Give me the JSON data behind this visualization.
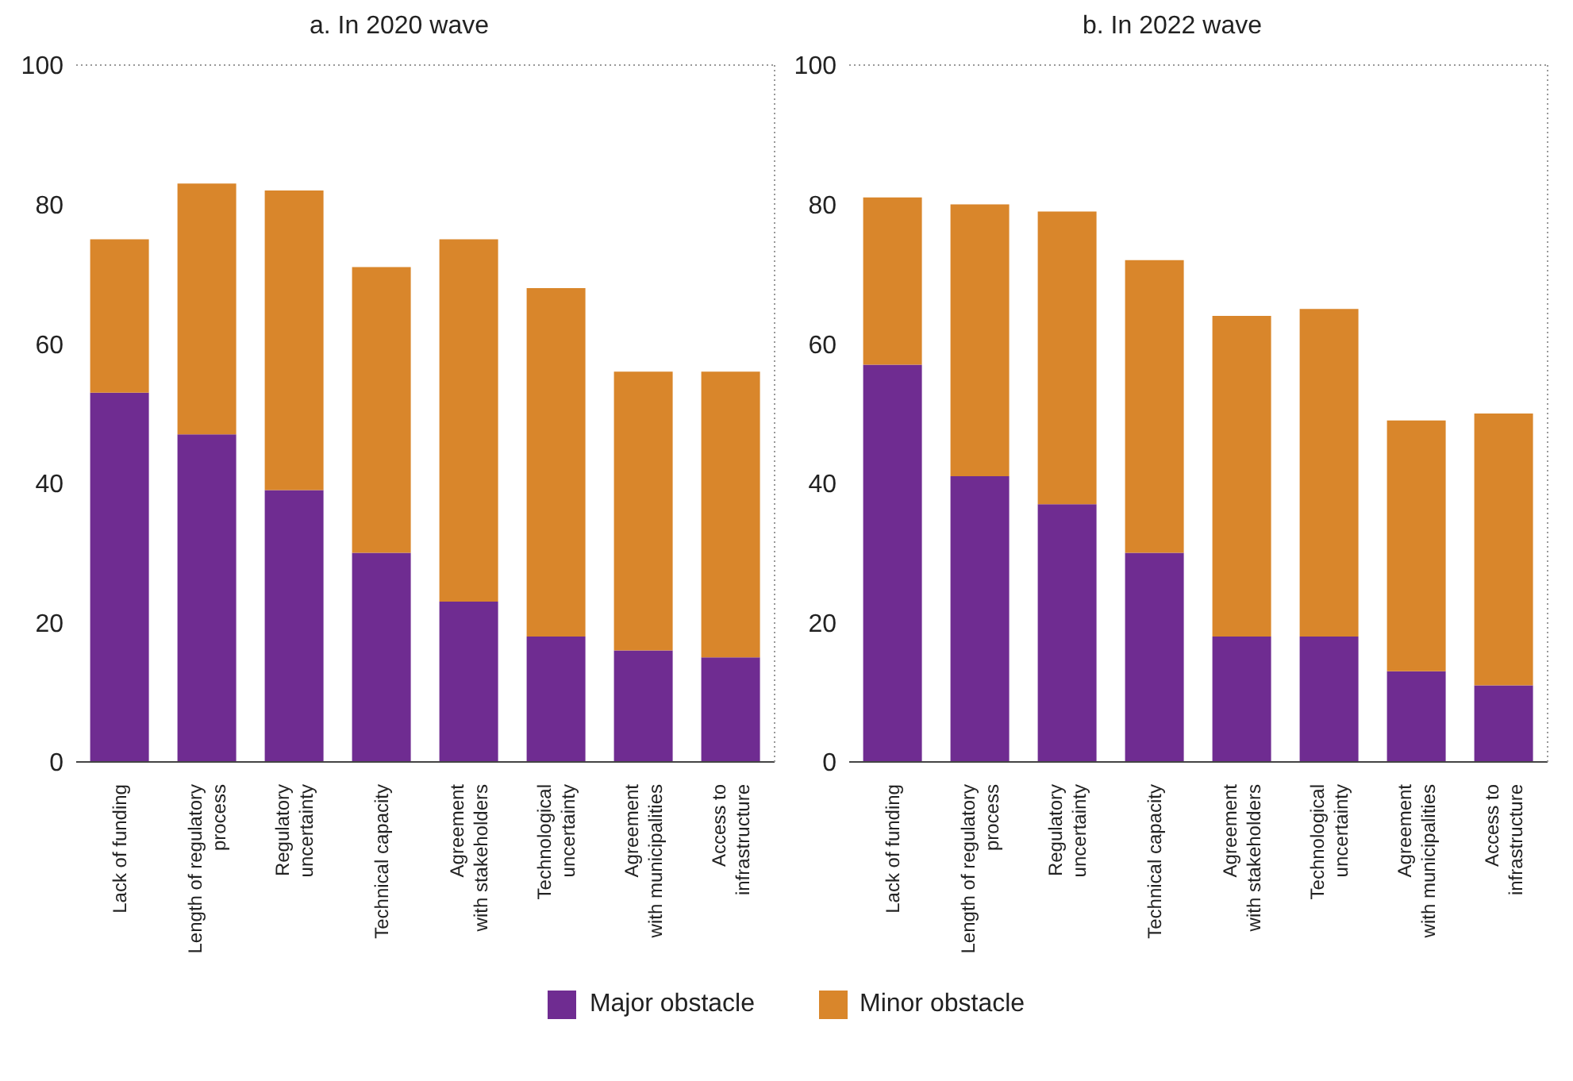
{
  "chart_data": [
    {
      "type": "bar",
      "title": "a. In 2020 wave",
      "categories": [
        "Lack of funding",
        "Length of regulatory\nprocess",
        "Regulatory\nuncertainty",
        "Technical capacity",
        "Agreement\nwith stakeholders",
        "Technological\nuncertainty",
        "Agreement\nwith municipalities",
        "Access to\ninfrastructure"
      ],
      "stacked": true,
      "ylim": [
        0,
        100
      ],
      "yticks": [
        0,
        20,
        40,
        60,
        80,
        100
      ],
      "legend": "bottom",
      "series": [
        {
          "name": "Major obstacle",
          "color": "#6f2c91",
          "values": [
            53,
            47,
            39,
            30,
            23,
            18,
            16,
            15
          ]
        },
        {
          "name": "Minor obstacle",
          "color": "#d9862b",
          "values": [
            22,
            36,
            43,
            41,
            52,
            50,
            40,
            41
          ]
        }
      ]
    },
    {
      "type": "bar",
      "title": "b. In 2022 wave",
      "categories": [
        "Lack of funding",
        "Length of regulatory\nprocess",
        "Regulatory\nuncertainty",
        "Technical capacity",
        "Agreement\nwith stakeholders",
        "Technological\nuncertainty",
        "Agreement\nwith municipalities",
        "Access to\ninfrastructure"
      ],
      "stacked": true,
      "ylim": [
        0,
        100
      ],
      "yticks": [
        0,
        20,
        40,
        60,
        80,
        100
      ],
      "series": [
        {
          "color": "#6f2c91",
          "values": [
            57,
            41,
            37,
            30,
            18,
            18,
            13,
            11
          ]
        },
        {
          "color": "#d9862b",
          "values": [
            24,
            39,
            42,
            42,
            46,
            47,
            36,
            39
          ]
        }
      ]
    }
  ]
}
